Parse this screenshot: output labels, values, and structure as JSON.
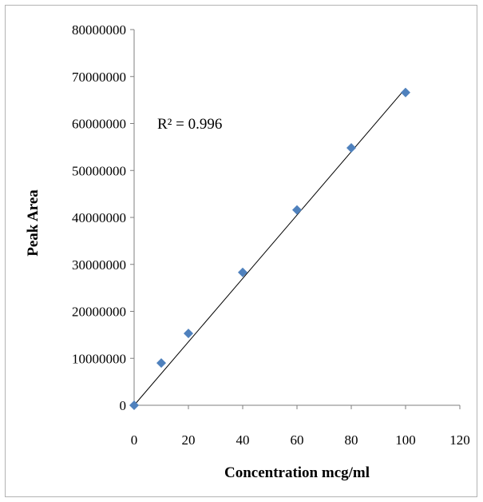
{
  "chart_data": {
    "type": "scatter",
    "xlabel": "Concentration mcg/ml",
    "ylabel": "Peak Area",
    "xlim": [
      0,
      120
    ],
    "ylim": [
      0,
      80000000
    ],
    "x_ticks": [
      0,
      20,
      40,
      60,
      80,
      100,
      120
    ],
    "y_ticks": [
      0,
      10000000,
      20000000,
      30000000,
      40000000,
      50000000,
      60000000,
      70000000,
      80000000
    ],
    "x_tick_labels": [
      "0",
      "20",
      "40",
      "60",
      "80",
      "100",
      "120"
    ],
    "y_tick_labels": [
      "0",
      "10000000",
      "20000000",
      "30000000",
      "40000000",
      "50000000",
      "60000000",
      "70000000",
      "80000000"
    ],
    "grid": false,
    "legend": "none",
    "series": [
      {
        "x": [
          0,
          10,
          20,
          40,
          60,
          80,
          100
        ],
        "y": [
          0,
          9000000,
          15300000,
          28300000,
          41600000,
          54800000,
          66600000
        ],
        "marker": "diamond",
        "color": "#4F81BD"
      }
    ],
    "trendline": {
      "type": "linear",
      "color": "#000000",
      "x": [
        0,
        100
      ],
      "y": [
        0,
        67500000
      ]
    },
    "annotation": "R² = 0.996"
  }
}
